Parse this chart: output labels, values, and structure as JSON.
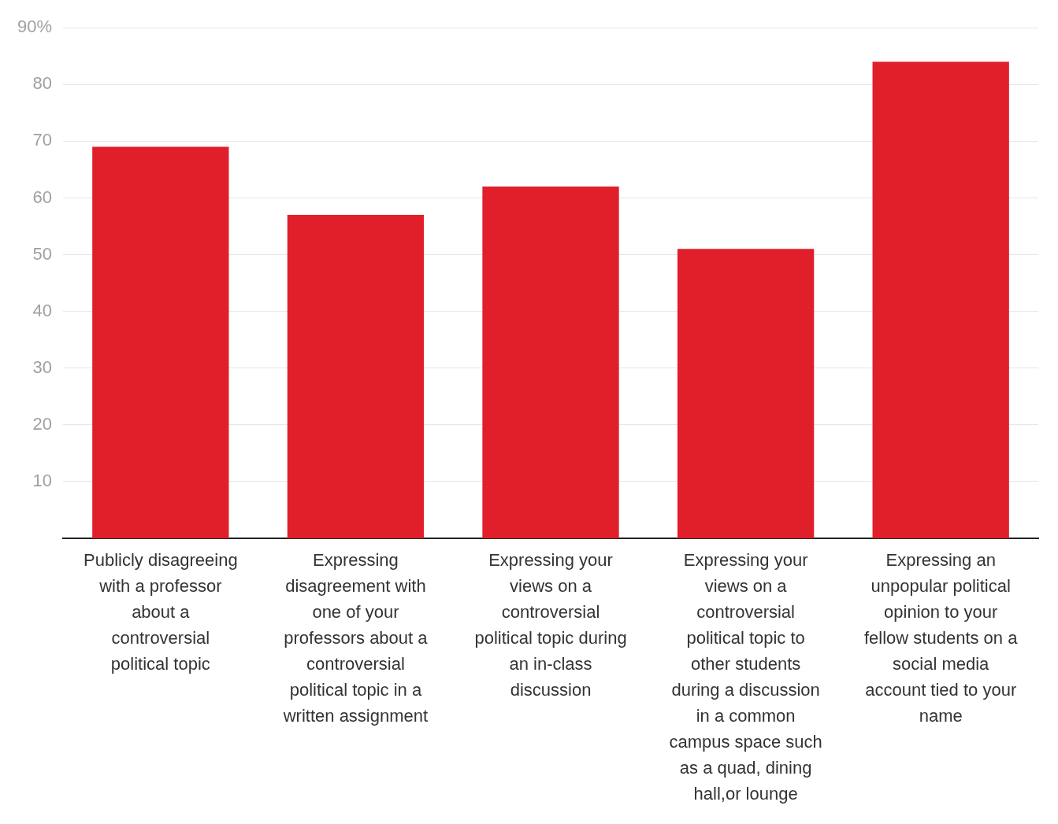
{
  "chart_data": {
    "type": "bar",
    "categories": [
      "Publicly disagreeing with a professor about a controversial political topic",
      "Expressing disagreement with one of your professors about a controversial political topic in a written assignment",
      "Expressing your views on a controversial political topic during an in-class discussion",
      "Expressing your views on a controversial political topic to other students during a discussion in a common campus space such as a quad, dining hall,or lounge",
      "Expressing an unpopular political opinion to your fellow students on a social media account tied to your name"
    ],
    "values": [
      69,
      57,
      62,
      51,
      84
    ],
    "color": "#e01f2a",
    "ylim": [
      0,
      90
    ],
    "yticks": [
      10,
      20,
      30,
      40,
      50,
      60,
      70,
      {
        "value": 90,
        "label": "90%"
      },
      80
    ],
    "grid": "y",
    "legend": false
  }
}
